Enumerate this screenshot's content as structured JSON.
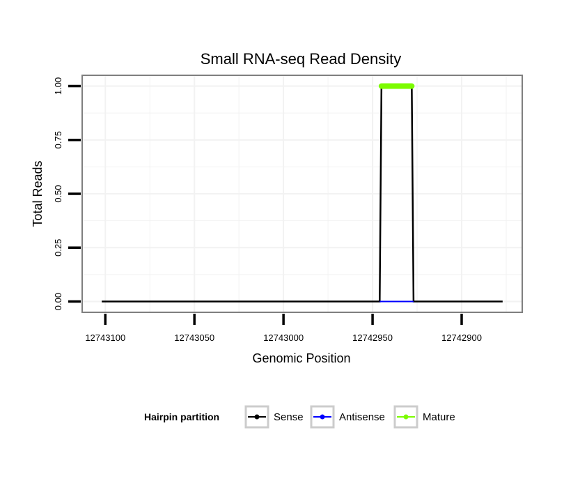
{
  "chart_data": {
    "type": "line",
    "title": "Small RNA-seq Read Density",
    "xlabel": "Genomic Position",
    "ylabel": "Total Reads",
    "x_reversed": true,
    "xlim": [
      12743113,
      12742866
    ],
    "ylim": [
      -0.05,
      1.05
    ],
    "x_ticks": [
      12743100,
      12743050,
      12743000,
      12742950,
      12742900
    ],
    "x_tick_labels": [
      "12743100",
      "12743050",
      "12743000",
      "12742950",
      "12742900"
    ],
    "y_ticks": [
      0,
      0.25,
      0.5,
      0.75,
      1.0
    ],
    "y_tick_labels": [
      "0.00",
      "0.25",
      "0.50",
      "0.75",
      "1.00"
    ],
    "grid": true,
    "legend_position": "bottom",
    "legend_title": "Hairpin partition",
    "series": [
      {
        "name": "Sense",
        "color": "#000000",
        "x": [
          12743102,
          12742946,
          12742945,
          12742928,
          12742927,
          12742877
        ],
        "y": [
          0,
          0,
          1,
          1,
          0,
          0
        ]
      },
      {
        "name": "Antisense",
        "color": "#0000ff",
        "x": [
          12742946,
          12742927
        ],
        "y": [
          0,
          0
        ]
      },
      {
        "name": "Mature",
        "color": "#7cfc00",
        "x": [
          12742945,
          12742928
        ],
        "y": [
          1,
          1
        ]
      }
    ]
  }
}
